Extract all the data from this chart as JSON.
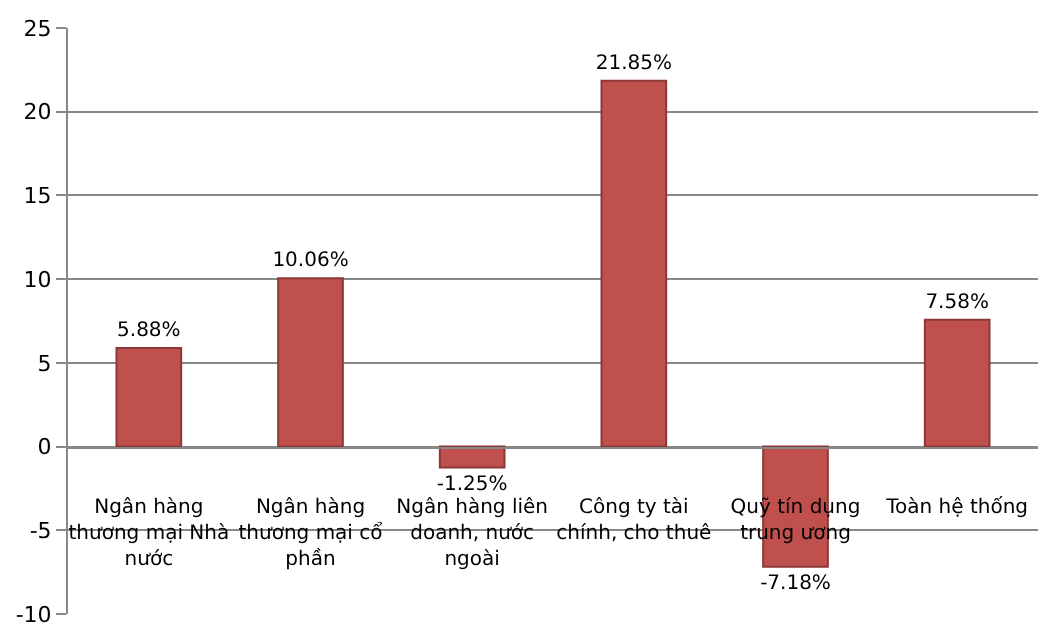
{
  "chart_data": {
    "type": "bar",
    "categories": [
      "Ngân hàng thương mại Nhà nước",
      "Ngân hàng thương mại cổ phần",
      "Ngân hàng liên doanh, nước ngoài",
      "Công ty tài chính, cho thuê",
      "Quỹ tín dụng trung ương",
      "Toàn hệ thống"
    ],
    "values": [
      5.88,
      10.06,
      -1.25,
      21.85,
      -7.18,
      7.58
    ],
    "value_labels": [
      "5.88%",
      "10.06%",
      "-1.25%",
      "21.85%",
      "-7.18%",
      "7.58%"
    ],
    "color": "#c0504d",
    "ylim": [
      -10,
      25
    ],
    "yticks": [
      -10,
      -5,
      0,
      5,
      10,
      15,
      20,
      25
    ],
    "grid": "y"
  }
}
